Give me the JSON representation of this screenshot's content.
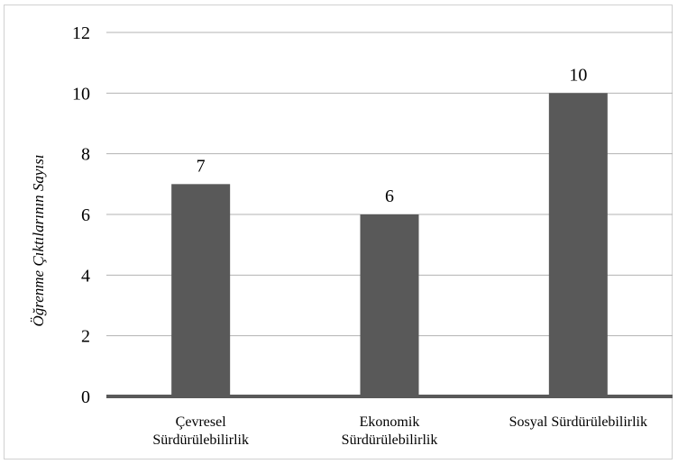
{
  "chart_data": {
    "type": "bar",
    "title": "",
    "xlabel": "",
    "ylabel": "Öğrenme Çıktılarının Sayısı",
    "categories": [
      [
        "Çevresel",
        "Sürdürülebilirlik"
      ],
      [
        "Ekonomik",
        "Sürdürülebilirlik"
      ],
      [
        "Sosyal Sürdürülebilirlik"
      ]
    ],
    "values": [
      7,
      6,
      10
    ],
    "data_labels": [
      "7",
      "6",
      "10"
    ],
    "ylim": [
      0,
      12
    ],
    "yticks": [
      0,
      2,
      4,
      6,
      8,
      10,
      12
    ],
    "grid": true,
    "legend": "none",
    "colors": {
      "bar": "#595959",
      "gridline": "#b3b3b3",
      "baseline": "#595959",
      "frame": "#d0d0d0"
    }
  }
}
